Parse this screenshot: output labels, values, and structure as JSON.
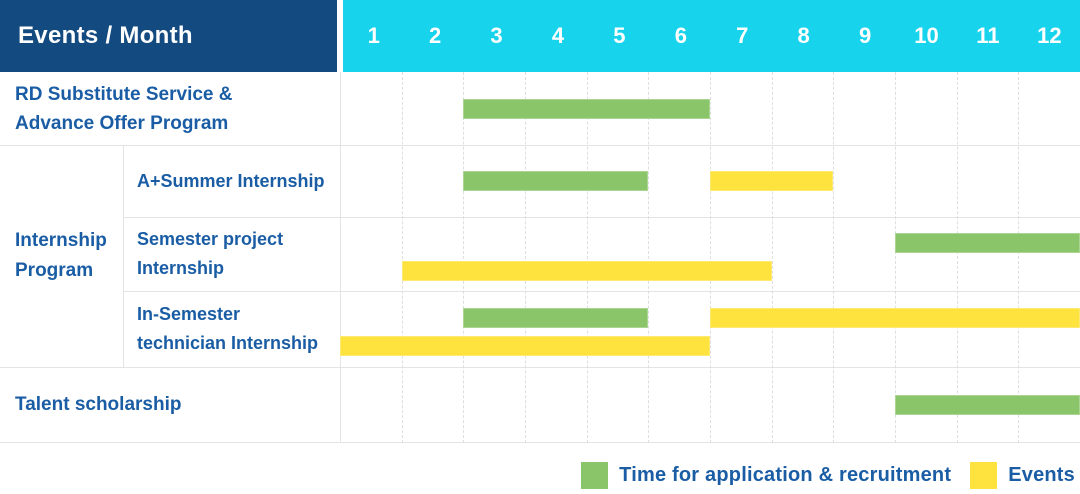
{
  "header": {
    "title": "Events / Month",
    "months": [
      "1",
      "2",
      "3",
      "4",
      "5",
      "6",
      "7",
      "8",
      "9",
      "10",
      "11",
      "12"
    ]
  },
  "colors": {
    "header_blue": "#134b81",
    "header_cyan": "#17d3ec",
    "text_blue": "#1a5da5",
    "green": "#8ac569",
    "yellow": "#fee23e"
  },
  "labels": {
    "row1": "RD Substitute Service & Advance Offer Program",
    "group": "Internship Program",
    "sub1": "A+Summer Internship",
    "sub2": "Semester project Internship",
    "sub3": "In-Semester technician Internship",
    "row5": "Talent scholarship"
  },
  "chart_data": {
    "type": "gantt",
    "x_axis": {
      "label": "Month",
      "ticks": [
        1,
        2,
        3,
        4,
        5,
        6,
        7,
        8,
        9,
        10,
        11,
        12
      ]
    },
    "series_colors": {
      "Time for application & recruitment": "#8ac569",
      "Events": "#fee23e"
    },
    "rows": [
      {
        "label": "RD Substitute Service & Advance Offer Program",
        "group": null,
        "bars": [
          {
            "series": "Time for application & recruitment",
            "start_month": 3,
            "end_month": 6,
            "track": "center"
          }
        ]
      },
      {
        "label": "A+Summer Internship",
        "group": "Internship Program",
        "bars": [
          {
            "series": "Time for application & recruitment",
            "start_month": 3,
            "end_month": 5,
            "track": "center"
          },
          {
            "series": "Events",
            "start_month": 7,
            "end_month": 8,
            "track": "center"
          }
        ]
      },
      {
        "label": "Semester project Internship",
        "group": "Internship Program",
        "bars": [
          {
            "series": "Time for application & recruitment",
            "start_month": 10,
            "end_month": 12,
            "track": "upper"
          },
          {
            "series": "Events",
            "start_month": 2,
            "end_month": 7,
            "track": "lower"
          }
        ]
      },
      {
        "label": "In-Semester technician Internship",
        "group": "Internship Program",
        "bars": [
          {
            "series": "Time for application & recruitment",
            "start_month": 3,
            "end_month": 5,
            "track": "upper"
          },
          {
            "series": "Events",
            "start_month": 7,
            "end_month": 12,
            "track": "upper"
          },
          {
            "series": "Events",
            "start_month": 1,
            "end_month": 6,
            "track": "lower"
          }
        ]
      },
      {
        "label": "Talent scholarship",
        "group": null,
        "bars": [
          {
            "series": "Time for application & recruitment",
            "start_month": 10,
            "end_month": 12,
            "track": "center"
          }
        ]
      }
    ],
    "legend": [
      {
        "label": "Time for application & recruitment",
        "color_hex": "#8ac569"
      },
      {
        "label": "Events",
        "color_hex": "#fee23e"
      }
    ]
  }
}
